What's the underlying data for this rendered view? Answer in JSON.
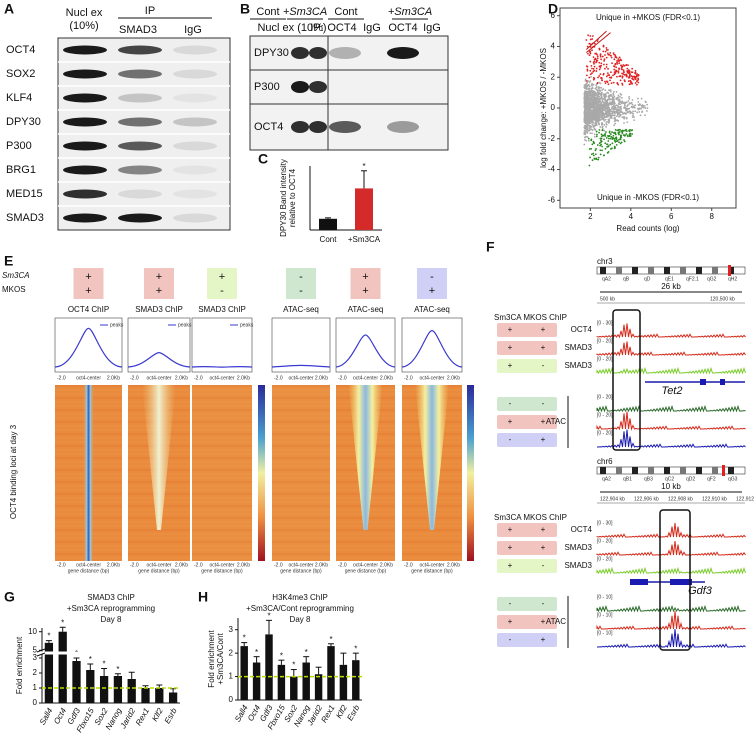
{
  "panel_letters": [
    "A",
    "B",
    "C",
    "D",
    "E",
    "F",
    "G",
    "H"
  ],
  "panel_a": {
    "header": [
      "Nucl ex",
      "(10%)"
    ],
    "ip": "IP",
    "lanes": [
      "SMAD3",
      "IgG"
    ],
    "rows": [
      "OCT4",
      "SOX2",
      "KLF4",
      "DPY30",
      "P300",
      "BRG1",
      "MED15",
      "SMAD3"
    ]
  },
  "panel_b": {
    "groups": [
      "Cont",
      "+Sm3CA",
      "Cont",
      "+Sm3CA"
    ],
    "lanes": [
      "Nucl ex (10%)",
      "IP:",
      "OCT4",
      "IgG",
      "OCT4",
      "IgG"
    ],
    "rows": [
      "DPY30",
      "P300",
      "OCT4"
    ]
  },
  "state_colors": {
    "++": "#f2c4c0",
    "+-": "#e4f5c6",
    "--": "#cfe6cf",
    "-+": "#d0d0f6"
  },
  "panel_e": {
    "row_labels": [
      "Sm3CA",
      "MKOS"
    ],
    "conditions": [
      [
        "+",
        "+"
      ],
      [
        "+",
        "+"
      ],
      [
        "+",
        "-"
      ],
      [
        "-",
        "-"
      ],
      [
        "+",
        "+"
      ],
      [
        "-",
        "+"
      ]
    ],
    "titles": [
      "OCT4 ChIP",
      "SMAD3 ChIP",
      "SMAD3 ChIP",
      "ATAC-seq",
      "ATAC-seq",
      "ATAC-seq"
    ],
    "legend": "peaks",
    "x_labels": [
      "-2.0",
      "oct4-center",
      "2.0Kb"
    ],
    "heatmap_x_label": "gene distance (bp)",
    "y_label": "OCT4 binding loci at day 3"
  },
  "panel_f": {
    "header": "Sm3CA MKOS ChIP",
    "atac_label": "ATAC",
    "tracks": [
      {
        "label": "OCT4",
        "state": [
          "+",
          "+"
        ],
        "color": "#d42a1a"
      },
      {
        "label": "SMAD3",
        "state": [
          "+",
          "+"
        ],
        "color": "#d42a1a"
      },
      {
        "label": "SMAD3",
        "state": [
          "+",
          "-"
        ],
        "color": "#7acc2a"
      }
    ],
    "atac": [
      {
        "state": [
          "-",
          "-"
        ],
        "color": "#2a6a2a"
      },
      {
        "state": [
          "+",
          "+"
        ],
        "color": "#d42a1a"
      },
      {
        "state": [
          "-",
          "+"
        ],
        "color": "#1a1ab0"
      }
    ],
    "loci": [
      {
        "chrom": "chr3",
        "scale": "26 kb",
        "gene": "Tet2",
        "bands": [
          "qA2",
          "qB",
          "qD",
          "qE1",
          "qF2.1",
          "qG2",
          "qH2"
        ],
        "coords": [
          "500 kb",
          "120,500 kb"
        ],
        "ranges": [
          "[0 - 30]",
          "[0 - 20]",
          "[0 - 20]",
          "[0 - 20]",
          "[0 - 20]",
          "[0 - 20]"
        ]
      },
      {
        "chrom": "chr6",
        "scale": "10 kb",
        "gene": "Gdf3",
        "bands": [
          "qA2",
          "qB1",
          "qB3",
          "qC2",
          "qD2",
          "qF2",
          "qG3"
        ],
        "coords": [
          "122,904 kb",
          "122,906 kb",
          "122,908 kb",
          "122,910 kb",
          "122,912 kb"
        ],
        "ranges": [
          "[0 - 30]",
          "[0 - 20]",
          "[0 - 20]",
          "[0 - 10]",
          "[0 - 10]",
          "[0 - 10]"
        ]
      }
    ]
  },
  "chart_data": [
    {
      "type": "bar",
      "ylabel": [
        "DPY30 Band intensity",
        "relative to OCT4"
      ],
      "categories": [
        "Cont",
        "+Sm3CA"
      ],
      "values": [
        3.5,
        13
      ],
      "errors": [
        0.3,
        5.5
      ],
      "colors": [
        "#111111",
        "#d42a2a"
      ],
      "ylim": [
        0,
        20
      ],
      "star": "*",
      "star_categories": [
        "+Sm3CA"
      ]
    },
    {
      "type": "scatter",
      "xlabel": "Read counts (log)",
      "ylabel": "log fold change: +MKOS / -MKOS",
      "annotations": [
        "Unique in +MKOS (FDR<0.1)",
        "Unique in -MKOS (FDR<0.1)"
      ],
      "annotation_colors": [
        "#d42020",
        "#2a7a20"
      ],
      "xlim": [
        0.5,
        9.2
      ],
      "ylim": [
        -6.5,
        6.5
      ],
      "xticks": [
        2,
        4,
        6,
        8
      ],
      "yticks": [
        -6,
        -4,
        -2,
        0,
        2,
        4,
        6
      ]
    },
    {
      "type": "bar",
      "title": "SMAD3 ChIP",
      "subtitle": [
        "+Sm3CA reprogramming",
        "Day 8"
      ],
      "ylabel": [
        "Fold enrichment"
      ],
      "categories": [
        "Sall4",
        "Oct4",
        "Gdf3",
        "Fbxo15",
        "Sox2",
        "Nanog",
        "Jarid2",
        "Rex1",
        "Klf2",
        "Esrb"
      ],
      "values": [
        7,
        10,
        2.8,
        2.2,
        1.8,
        1.8,
        1.6,
        1.0,
        1.0,
        0.7
      ],
      "errors": [
        0.6,
        1.2,
        0.2,
        0.4,
        0.5,
        0.15,
        0.45,
        0.15,
        0.2,
        0.25
      ],
      "color": "#111111",
      "label_colors": [
        "#2a2ad0",
        "#2a2ad0",
        "#2a2ad0",
        "#2a2ad0",
        "#2a2ad0",
        "#2a2ad0",
        "#111111",
        "#111111",
        "#111111",
        "#111111"
      ],
      "ylim": [
        0,
        11
      ],
      "axis_break": [
        3.2,
        4.8
      ],
      "yticks": [
        0,
        1,
        2,
        3,
        5,
        10
      ],
      "reference_line": 1,
      "reference_color": "#b8dc00",
      "star": "*",
      "star_categories": [
        "Sall4",
        "Oct4",
        "Gdf3",
        "Fbxo15",
        "Sox2",
        "Nanog"
      ]
    },
    {
      "type": "bar",
      "title": "H3K4me3 ChIP",
      "subtitle": [
        "+Sm3CA/Cont reprogramming",
        "Day 8"
      ],
      "ylabel": [
        "Fold enrichment",
        "+Sm3CA/Cont"
      ],
      "categories": [
        "Sall4",
        "Oct4",
        "Gdf3",
        "Fbxo15",
        "Sox2",
        "Nanog",
        "Jarid2",
        "Rex1",
        "Klf2",
        "Esrb"
      ],
      "values": [
        2.3,
        1.6,
        2.8,
        1.5,
        1.0,
        1.6,
        1.1,
        2.3,
        1.5,
        1.7
      ],
      "errors": [
        0.15,
        0.25,
        0.6,
        0.2,
        0.3,
        0.25,
        0.3,
        0.1,
        0.5,
        0.3
      ],
      "color": "#111111",
      "label_colors": [
        "#d42020",
        "#d42020",
        "#d42020",
        "#d42020",
        "#111111",
        "#d42020",
        "#111111",
        "#111111",
        "#111111",
        "#111111"
      ],
      "ylim": [
        0,
        3.5
      ],
      "yticks": [
        0,
        1,
        2,
        3
      ],
      "reference_line": 1,
      "reference_color": "#b8dc00",
      "star": "*",
      "star_categories": [
        "Sall4",
        "Oct4",
        "Gdf3",
        "Fbxo15",
        "Sox2",
        "Nanog",
        "Rex1",
        "Esrb"
      ]
    }
  ]
}
